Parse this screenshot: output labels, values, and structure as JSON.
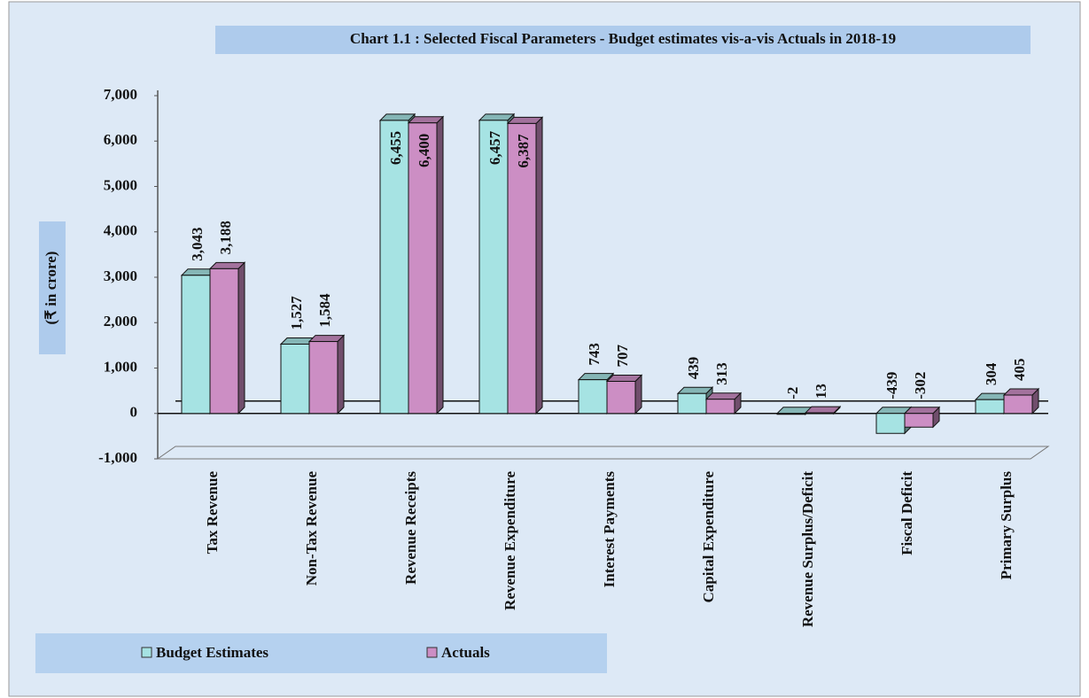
{
  "chart_data": {
    "type": "bar3d",
    "title": "Chart 1.1 : Selected Fiscal Parameters - Budget estimates vis-a-vis Actuals in  2018-19",
    "y_label": "(₹ in crore)",
    "categories": [
      "Tax Revenue",
      "Non-Tax Revenue",
      "Revenue Receipts",
      "Revenue Expenditure",
      "Interest Payments",
      "Capital Expenditure",
      "Revenue Surplus/Deficit",
      "Fiscal Deficit",
      "Primary Surplus"
    ],
    "series": [
      {
        "name": "Budget Estimates",
        "color": "#a6e3e3",
        "values": [
          3043,
          1527,
          6455,
          6457,
          743,
          439,
          -2,
          -439,
          304
        ],
        "value_labels": [
          "3,043",
          "1,527",
          "6,455",
          "6,457",
          "743",
          "439",
          "-2",
          "-439",
          "304"
        ]
      },
      {
        "name": "Actuals",
        "color": "#cc8ec4",
        "values": [
          3188,
          1584,
          6400,
          6387,
          707,
          313,
          13,
          -302,
          405
        ],
        "value_labels": [
          "3,188",
          "1,584",
          "6,400",
          "6,387",
          "707",
          "313",
          "13",
          "-302",
          "405"
        ]
      }
    ],
    "ylim": [
      -1000,
      7000
    ],
    "yticks": [
      {
        "value": -1000,
        "label": "-1,000"
      },
      0,
      {
        "value": 1000,
        "label": "1,000"
      },
      {
        "value": 2000,
        "label": "2,000"
      },
      {
        "value": 3000,
        "label": "3,000"
      },
      {
        "value": 4000,
        "label": "4,000"
      },
      {
        "value": 5000,
        "label": "5,000"
      },
      {
        "value": 6000,
        "label": "6,000"
      },
      {
        "value": 7000,
        "label": "7,000"
      }
    ],
    "legend": "bottom"
  }
}
